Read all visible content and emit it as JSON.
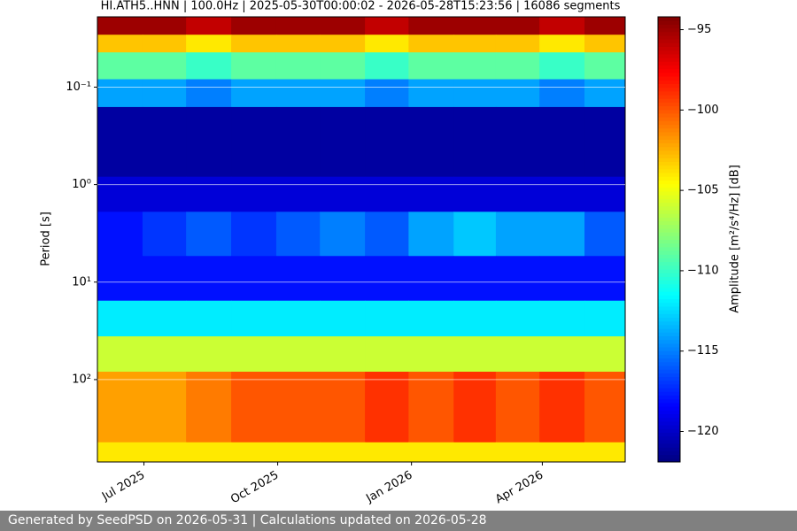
{
  "chart_data": {
    "type": "heatmap",
    "title": "HI.ATH5..HNN | 100.0Hz | 2025-05-30T00:00:02 - 2026-05-28T15:23:56 | 16086 segments",
    "ylabel": "Period [s]",
    "colorbar_label": "Amplitude [m²/s⁴/Hz] [dB]",
    "colormap": "jet",
    "y_log": true,
    "y_inverted": true,
    "grid": true,
    "xlim": [
      "2025-05-30",
      "2026-05-28"
    ],
    "xticks": [
      {
        "value": "2025-07-01",
        "label": "Jul 2025"
      },
      {
        "value": "2025-10-01",
        "label": "Oct 2025"
      },
      {
        "value": "2026-01-01",
        "label": "Jan 2026"
      },
      {
        "value": "2026-04-01",
        "label": "Apr 2026"
      }
    ],
    "ylim": [
      0.019,
      700
    ],
    "yticks": [
      {
        "value": 0.1,
        "label": "10⁻¹"
      },
      {
        "value": 1,
        "label": "10⁰"
      },
      {
        "value": 10,
        "label": "10¹"
      },
      {
        "value": 100,
        "label": "10²"
      }
    ],
    "clim": [
      -121.9,
      -94.2
    ],
    "cticks": [
      {
        "value": -95,
        "label": "−95"
      },
      {
        "value": -100,
        "label": "−100"
      },
      {
        "value": -105,
        "label": "−105"
      },
      {
        "value": -110,
        "label": "−110"
      },
      {
        "value": -115,
        "label": "−115"
      },
      {
        "value": -120,
        "label": "−120"
      }
    ],
    "x_edges": [
      "2025-05-30",
      "2025-06-30",
      "2025-07-30",
      "2025-08-30",
      "2025-09-30",
      "2025-10-30",
      "2025-11-30",
      "2025-12-30",
      "2026-01-30",
      "2026-02-28",
      "2026-03-30",
      "2026-04-30",
      "2026-05-28"
    ],
    "y_edges": [
      0.019,
      0.029,
      0.044,
      0.083,
      0.16,
      0.83,
      1.9,
      5.4,
      15.5,
      36,
      83,
      440,
      700
    ],
    "z": [
      [
        -95,
        -95,
        -96,
        -95,
        -95,
        -95,
        -96,
        -95,
        -95,
        -95,
        -96,
        -95
      ],
      [
        -103,
        -103,
        -104,
        -103,
        -103,
        -103,
        -104,
        -103,
        -103,
        -103,
        -104,
        -103
      ],
      [
        -109,
        -109,
        -110,
        -109,
        -109,
        -109,
        -110,
        -109,
        -109,
        -109,
        -110,
        -109
      ],
      [
        -114,
        -114,
        -115,
        -114,
        -114,
        -114,
        -115,
        -114,
        -114,
        -114,
        -115,
        -114
      ],
      [
        -121,
        -121,
        -121,
        -121,
        -121,
        -121,
        -121,
        -121,
        -121,
        -121,
        -121,
        -121
      ],
      [
        -119.5,
        -119.5,
        -119.5,
        -119.5,
        -119.5,
        -119.5,
        -119.5,
        -119.5,
        -119.5,
        -119.5,
        -119.5,
        -119.5
      ],
      [
        -118,
        -117,
        -116,
        -117,
        -116,
        -115,
        -116,
        -114,
        -113,
        -114,
        -114,
        -116
      ],
      [
        -118,
        -118,
        -118,
        -118,
        -118,
        -118,
        -118,
        -118,
        -118,
        -118,
        -118,
        -118
      ],
      [
        -112,
        -112,
        -112,
        -112,
        -112,
        -112,
        -112,
        -112,
        -112,
        -112,
        -112,
        -112
      ],
      [
        -106,
        -106,
        -106,
        -106,
        -106,
        -106,
        -106,
        -106,
        -106,
        -106,
        -106,
        -106
      ],
      [
        -102,
        -102,
        -101,
        -100,
        -100,
        -100,
        -99,
        -100,
        -99,
        -100,
        -99,
        -100
      ],
      [
        -104,
        -104,
        -104,
        -104,
        -104,
        -104,
        -104,
        -104,
        -104,
        -104,
        -104,
        -104
      ]
    ]
  },
  "footer": "Generated by SeedPSD on 2026-05-31 | Calculations updated on 2026-05-28"
}
